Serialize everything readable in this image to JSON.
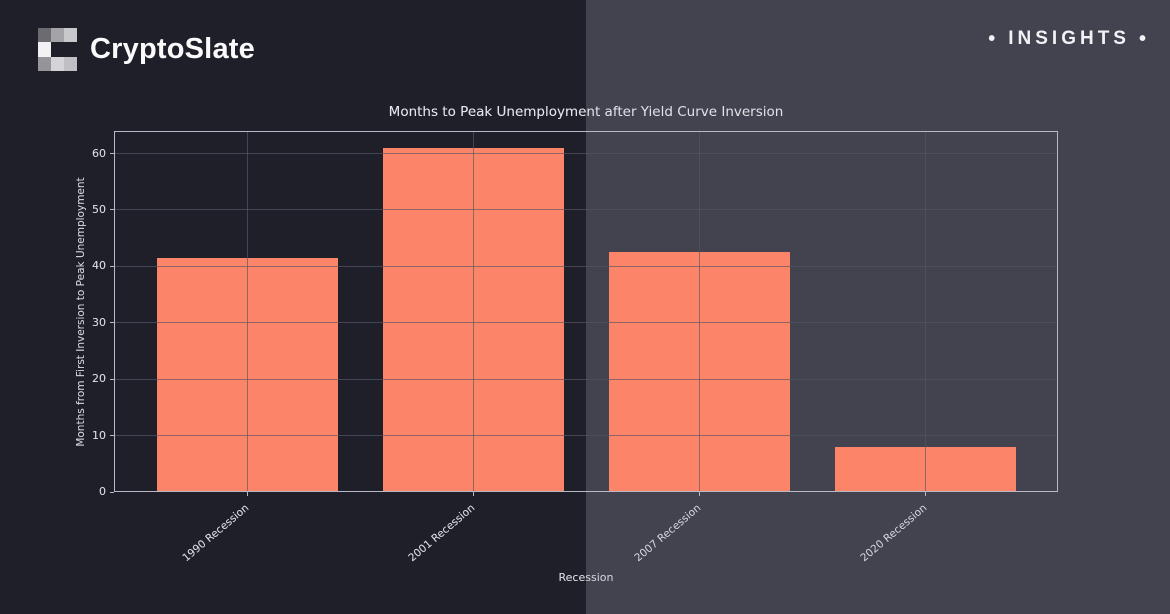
{
  "header": {
    "brand": "CryptoSlate",
    "badge": "INSIGHTS",
    "badge_bullet": "•"
  },
  "chart_data": {
    "type": "bar",
    "title": "Months to Peak Unemployment after Yield Curve Inversion",
    "xlabel": "Recession",
    "ylabel": "Months from First Inversion to Peak Unemployment",
    "categories": [
      "1990 Recession",
      "2001 Recession",
      "2007 Recession",
      "2020 Recession"
    ],
    "values": [
      41.5,
      61,
      42.5,
      8
    ],
    "yticks": [
      0,
      10,
      20,
      30,
      40,
      50,
      60
    ],
    "ylim": [
      0,
      64
    ],
    "grid": true,
    "legend": false,
    "grid_above_bars": true
  },
  "style": {
    "left_theme": {
      "page_bg": "#1f1f29",
      "bar": "#fa332b",
      "grid": "rgba(40,40,54,0.7)",
      "frame": "#8a8a94",
      "text": "#9c9ca4",
      "muted_text": "#90909a",
      "title": "#a8a8b0"
    },
    "right_theme": {
      "page_bg": "#43434f",
      "bar": "#fc8468",
      "grid": "rgba(86,86,100,0.65)",
      "frame": "#b9b9c6",
      "text": "#d8d8df",
      "muted_text": "#d0d0d8",
      "title": "#e2e2e8"
    },
    "logo_cells": [
      "#6b6b71",
      "#a3a3a8",
      "#c7c7cc",
      "#f2f2f4",
      null,
      null,
      "#94949a",
      "#d4d4d8",
      "#bfbfc4"
    ]
  }
}
